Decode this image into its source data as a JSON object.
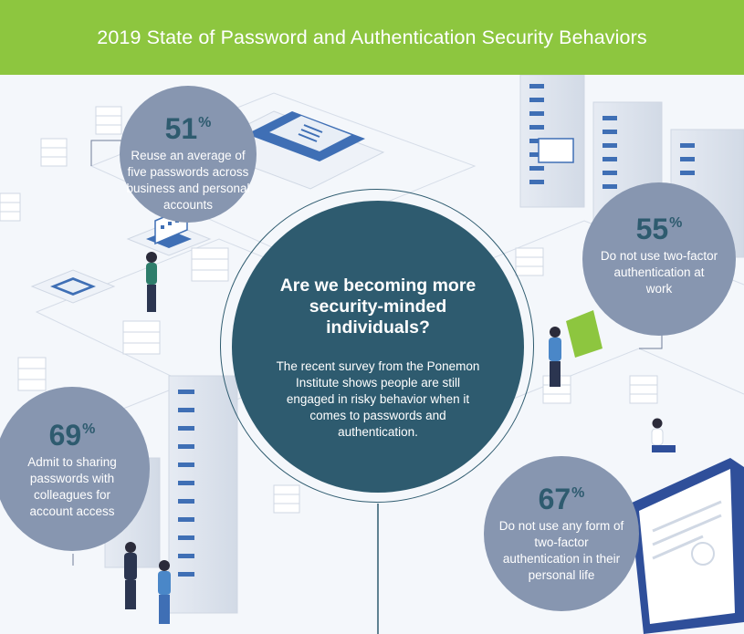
{
  "header": {
    "title": "2019 State of Password and Authentication Security Behaviors",
    "background": "#8dc63f"
  },
  "center": {
    "heading": "Are we becoming more security-minded individuals?",
    "body": "The recent survey from the Ponemon Institute shows people are still engaged in risky behavior when it comes to passwords and authentication."
  },
  "stats": [
    {
      "number": "51",
      "unit": "%",
      "text": "Reuse an average of five passwords across business and personal accounts"
    },
    {
      "number": "55",
      "unit": "%",
      "text": "Do not use two-factor authentication at work"
    },
    {
      "number": "69",
      "unit": "%",
      "text": "Admit to sharing passwords with colleagues for account access"
    },
    {
      "number": "67",
      "unit": "%",
      "text": "Do not use any form of two-factor authentication in their personal life"
    }
  ],
  "colors": {
    "stat_circle": "#8796b0",
    "center_circle": "#2e5b6f",
    "number_text": "#2e5b6f",
    "accent_green": "#8dc63f",
    "server_blue": "#3f6fb5"
  },
  "icons": [
    "server-rack-icon",
    "laptop-icon",
    "person-icon",
    "dashboard-screen-icon",
    "network-chip-icon"
  ]
}
